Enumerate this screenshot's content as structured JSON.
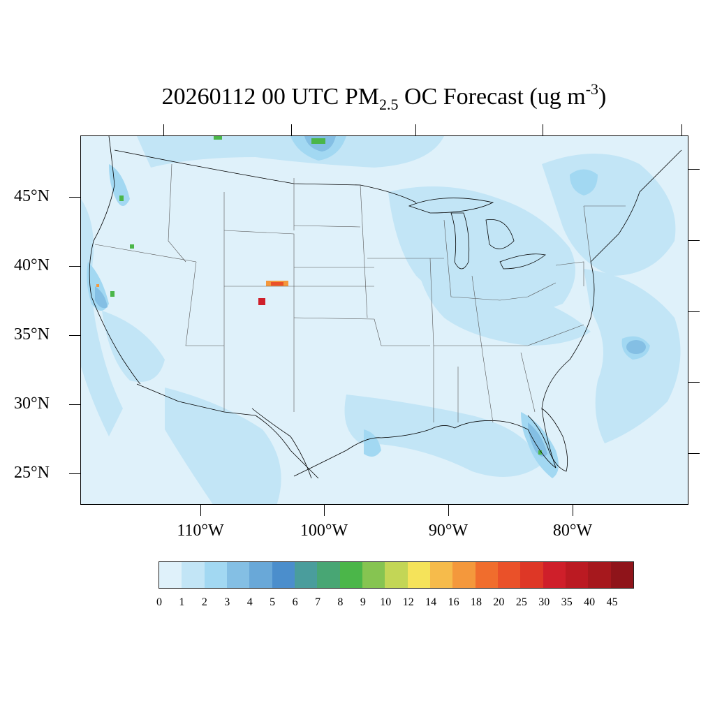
{
  "title": {
    "main": "20260112 00 UTC PM",
    "sub": "2.5",
    "mid": " OC Forecast (ug m",
    "sup": "-3",
    "end": ")"
  },
  "axes": {
    "lat_labels": [
      "45°N",
      "40°N",
      "35°N",
      "30°N",
      "25°N"
    ],
    "lon_labels": [
      "110°W",
      "100°W",
      "90°W",
      "80°W"
    ]
  },
  "colorbar": {
    "labels": [
      "0",
      "1",
      "2",
      "3",
      "4",
      "5",
      "6",
      "7",
      "8",
      "9",
      "10",
      "12",
      "14",
      "16",
      "18",
      "20",
      "25",
      "30",
      "35",
      "40",
      "45"
    ],
    "colors": [
      "#dff1fa",
      "#c2e5f6",
      "#a2d8f2",
      "#84bfe4",
      "#69a8d8",
      "#4b8ecc",
      "#4a9d9c",
      "#48a674",
      "#4bb649",
      "#86c451",
      "#c3d656",
      "#f5e35a",
      "#f6bb4b",
      "#f4983c",
      "#f06d2d",
      "#ea5129",
      "#de3726",
      "#cf1f2a",
      "#bb1a22",
      "#a6181d",
      "#8f141a"
    ]
  },
  "map": {
    "background_color": "#dff1fa",
    "hotspot_color": "#cf1f2a"
  }
}
